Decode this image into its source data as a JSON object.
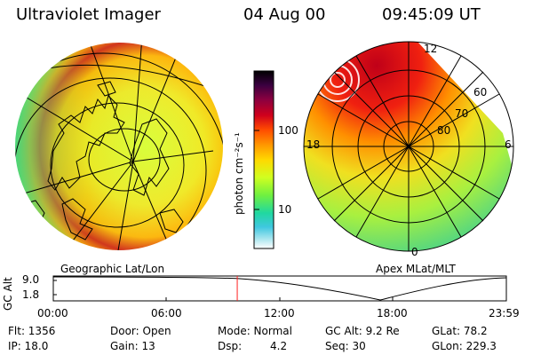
{
  "header": {
    "instrument": "Ultraviolet Imager",
    "date": "04 Aug 00",
    "time": "09:45:09 UT"
  },
  "colorbar": {
    "unit_label": "photon cm⁻²s⁻¹",
    "ticks": [
      "100",
      "10"
    ],
    "colors": [
      "#000000",
      "#2a0033",
      "#6b004a",
      "#b0001a",
      "#e02010",
      "#ff5a00",
      "#ffa000",
      "#ffd800",
      "#d8ff20",
      "#80f040",
      "#30e080",
      "#20c8d8",
      "#80e0f0",
      "#ffffff"
    ]
  },
  "left_panel": {
    "caption": "Geographic Lat/Lon"
  },
  "right_panel": {
    "caption": "Apex MLat/MLT",
    "mlt_labels": {
      "top": "12",
      "left": "18",
      "right": "6",
      "bottom": "0"
    },
    "lat_labels": [
      "60",
      "70",
      "80"
    ]
  },
  "altitude_strip": {
    "axis_label": "GC Alt",
    "y_ticks": [
      "9.0",
      "1.8"
    ],
    "x_ticks": [
      "00:00",
      "06:00",
      "12:00",
      "18:00",
      "23:59"
    ],
    "current_time_fraction": 0.406
  },
  "info": {
    "flt": "Flt: 1356",
    "ip": "IP: 18.0",
    "door": "Door: Open",
    "gain": "Gain: 13",
    "mode": "Mode: Normal",
    "dsp_label": "Dsp:",
    "dsp_value": "4.2",
    "gc_alt": "GC Alt: 9.2 Re",
    "seq": "Seq: 30",
    "glat": "GLat: 78.2",
    "glon": "GLon: 229.3"
  }
}
